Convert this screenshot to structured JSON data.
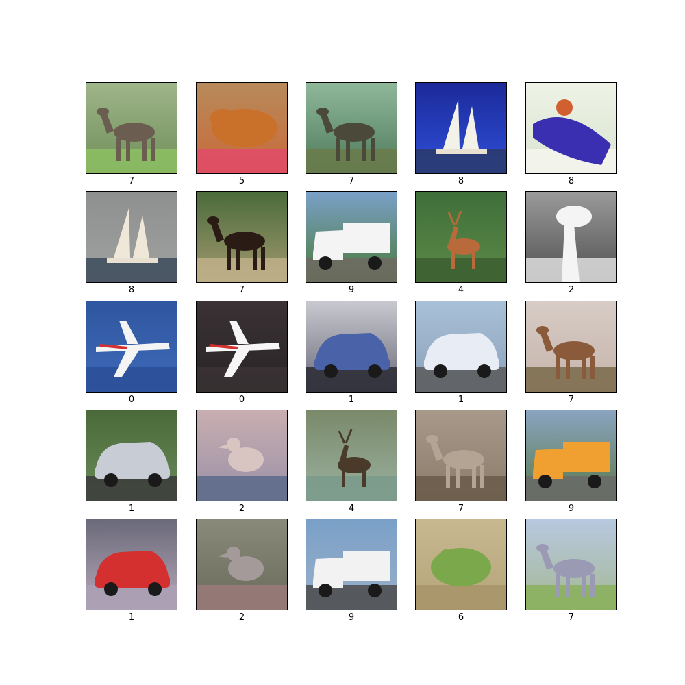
{
  "figure": {
    "cells": [
      {
        "label": "7",
        "subject": "horse",
        "bg": [
          "#9fb58a",
          "#6f8e58"
        ],
        "ground": "#8dc063",
        "fg": "#6b5e50"
      },
      {
        "label": "5",
        "subject": "dog",
        "bg": [
          "#b88a5a",
          "#c96a3a"
        ],
        "ground": "#e24a6a",
        "fg": "#c9702a"
      },
      {
        "label": "7",
        "subject": "horse",
        "bg": [
          "#8fb89a",
          "#4d7a5a"
        ],
        "ground": "#6b7b4a",
        "fg": "#4b4a3a"
      },
      {
        "label": "8",
        "subject": "ship",
        "bg": [
          "#1b2a9a",
          "#2f4fd8"
        ],
        "ground": "#2a3a6a",
        "fg": "#f2f2e8"
      },
      {
        "label": "8",
        "subject": "boat",
        "bg": [
          "#eef3e6",
          "#d9e3cf"
        ],
        "ground": "#f6f6ee",
        "fg": "#3a2fb0"
      },
      {
        "label": "8",
        "subject": "sailboat",
        "bg": [
          "#8e9090",
          "#a0a2a0"
        ],
        "ground": "#3c4a5a",
        "fg": "#efe7d7"
      },
      {
        "label": "7",
        "subject": "horse",
        "bg": [
          "#4a6b3a",
          "#a39a70"
        ],
        "ground": "#bfb08a",
        "fg": "#2a1c14"
      },
      {
        "label": "9",
        "subject": "truck",
        "bg": [
          "#7aa0c8",
          "#4a7a3a"
        ],
        "ground": "#6e6a62",
        "fg": "#f4f4f4"
      },
      {
        "label": "4",
        "subject": "deer",
        "bg": [
          "#3f6f3a",
          "#5d8a48"
        ],
        "ground": "#3c5d30",
        "fg": "#b86a3a"
      },
      {
        "label": "2",
        "subject": "ostrich",
        "bg": [
          "#9a9a9a",
          "#505050"
        ],
        "ground": "#dedede",
        "fg": "#f4f4f4"
      },
      {
        "label": "0",
        "subject": "airplane",
        "bg": [
          "#2f56a0",
          "#3f6ab8"
        ],
        "ground": "#2a4f96",
        "fg": "#f4f4f4"
      },
      {
        "label": "0",
        "subject": "airplane",
        "bg": [
          "#3a3234",
          "#2a2426"
        ],
        "ground": "#3a3234",
        "fg": "#f6f6f6"
      },
      {
        "label": "1",
        "subject": "car",
        "bg": [
          "#c8c8d0",
          "#6a6a78"
        ],
        "ground": "#2a2a34",
        "fg": "#4a62a8"
      },
      {
        "label": "1",
        "subject": "police-car",
        "bg": [
          "#a8c0d8",
          "#8aa0b8"
        ],
        "ground": "#5a5a5a",
        "fg": "#e8ecf4"
      },
      {
        "label": "7",
        "subject": "horse",
        "bg": [
          "#d8ccc6",
          "#c4b4aa"
        ],
        "ground": "#7a6a4a",
        "fg": "#8a5a3a"
      },
      {
        "label": "1",
        "subject": "van",
        "bg": [
          "#4a6a3a",
          "#6a8a5a"
        ],
        "ground": "#3a3a3a",
        "fg": "#c8ccd4"
      },
      {
        "label": "2",
        "subject": "bird",
        "bg": [
          "#c8aeb0",
          "#9a90a8"
        ],
        "ground": "#5a6a8a",
        "fg": "#d8c4c0"
      },
      {
        "label": "4",
        "subject": "deer",
        "bg": [
          "#7a8a6a",
          "#9ab0a0"
        ],
        "ground": "#7a9a8a",
        "fg": "#4a3a2a"
      },
      {
        "label": "7",
        "subject": "horse",
        "bg": [
          "#a89a8a",
          "#8a7a6a"
        ],
        "ground": "#6a5a4a",
        "fg": "#b4a494"
      },
      {
        "label": "9",
        "subject": "truck",
        "bg": [
          "#8aa4c0",
          "#5a7a4a"
        ],
        "ground": "#6a6a6a",
        "fg": "#f0a030"
      },
      {
        "label": "1",
        "subject": "car",
        "bg": [
          "#6a6a7a",
          "#b8a8b8"
        ],
        "ground": "#aaa0b4",
        "fg": "#d43030"
      },
      {
        "label": "2",
        "subject": "bird",
        "bg": [
          "#8a8a7a",
          "#6a6a5a"
        ],
        "ground": "#9a7a7a",
        "fg": "#a49a9a"
      },
      {
        "label": "9",
        "subject": "truck",
        "bg": [
          "#7aa0c8",
          "#9ab0c8"
        ],
        "ground": "#4a4a4a",
        "fg": "#f2f2f2"
      },
      {
        "label": "6",
        "subject": "frog",
        "bg": [
          "#c8b890",
          "#b4a47a"
        ],
        "ground": "#a89468",
        "fg": "#7aa84a"
      },
      {
        "label": "7",
        "subject": "horse",
        "bg": [
          "#b8c8e0",
          "#a4b894"
        ],
        "ground": "#8ab05a",
        "fg": "#9a9ab4"
      }
    ]
  }
}
